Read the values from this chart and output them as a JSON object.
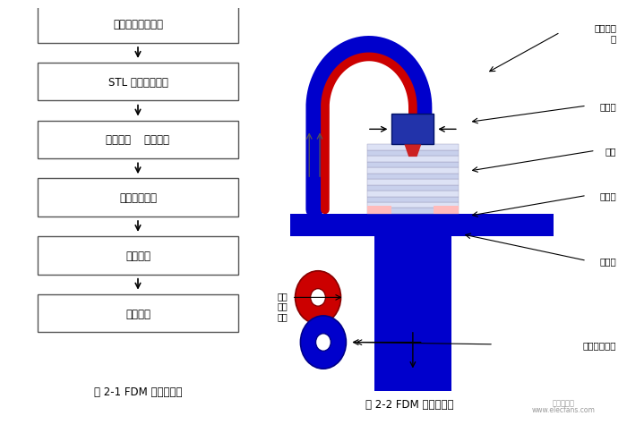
{
  "bg_color": "#ffffff",
  "left_caption": "图 2-1 FDM 成型流程图",
  "right_caption": "图 2-2 FDM 系统模型图",
  "watermark_line1": "电子发烧友",
  "watermark_line2": "www.elecfans.com",
  "flowchart_boxes": [
    "建立三维实体模型",
    "STL 文件数据转换",
    "分层切片    加入支撑",
    "熔融沉积成型",
    "三维模型",
    "表面处理"
  ],
  "blue_color": "#0000cc",
  "red_color": "#cc0000",
  "dark_blue_head": "#2233aa",
  "layer_color_a": "#c8d0ec",
  "layer_color_b": "#dde2f5",
  "layer_edge": "#9999bb",
  "pink_pad": "#ffbbbb",
  "platform_blue": "#0000cc",
  "col_blue": "#0000cc"
}
